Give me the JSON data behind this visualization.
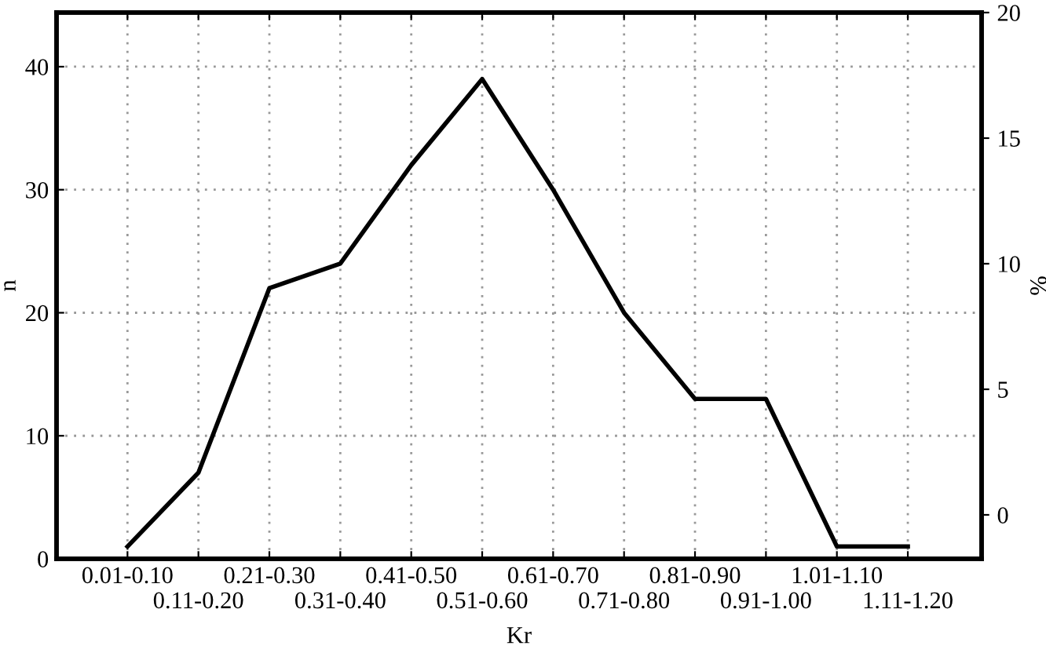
{
  "chart_data": {
    "type": "line",
    "xlabel": "Kr",
    "ylabel": "n",
    "y2label": "%",
    "categories": [
      "0.01-0.10",
      "0.11-0.20",
      "0.21-0.30",
      "0.31-0.40",
      "0.41-0.50",
      "0.51-0.60",
      "0.61-0.70",
      "0.71-0.80",
      "0.81-0.90",
      "0.91-1.00",
      "1.01-1.10",
      "1.11-1.20"
    ],
    "series": [
      {
        "color": "#000000",
        "values": [
          1,
          7,
          22,
          24,
          32,
          39,
          30,
          20,
          13,
          13,
          1,
          1
        ]
      }
    ],
    "ylim": [
      0,
      44.4
    ],
    "yticks": [
      0,
      10,
      20,
      30,
      40
    ],
    "y2lim": [
      -1.75,
      20
    ],
    "y2ticks": [
      0,
      5,
      10,
      15,
      20
    ],
    "grid": true,
    "marker": "none",
    "line_style": "solid"
  }
}
